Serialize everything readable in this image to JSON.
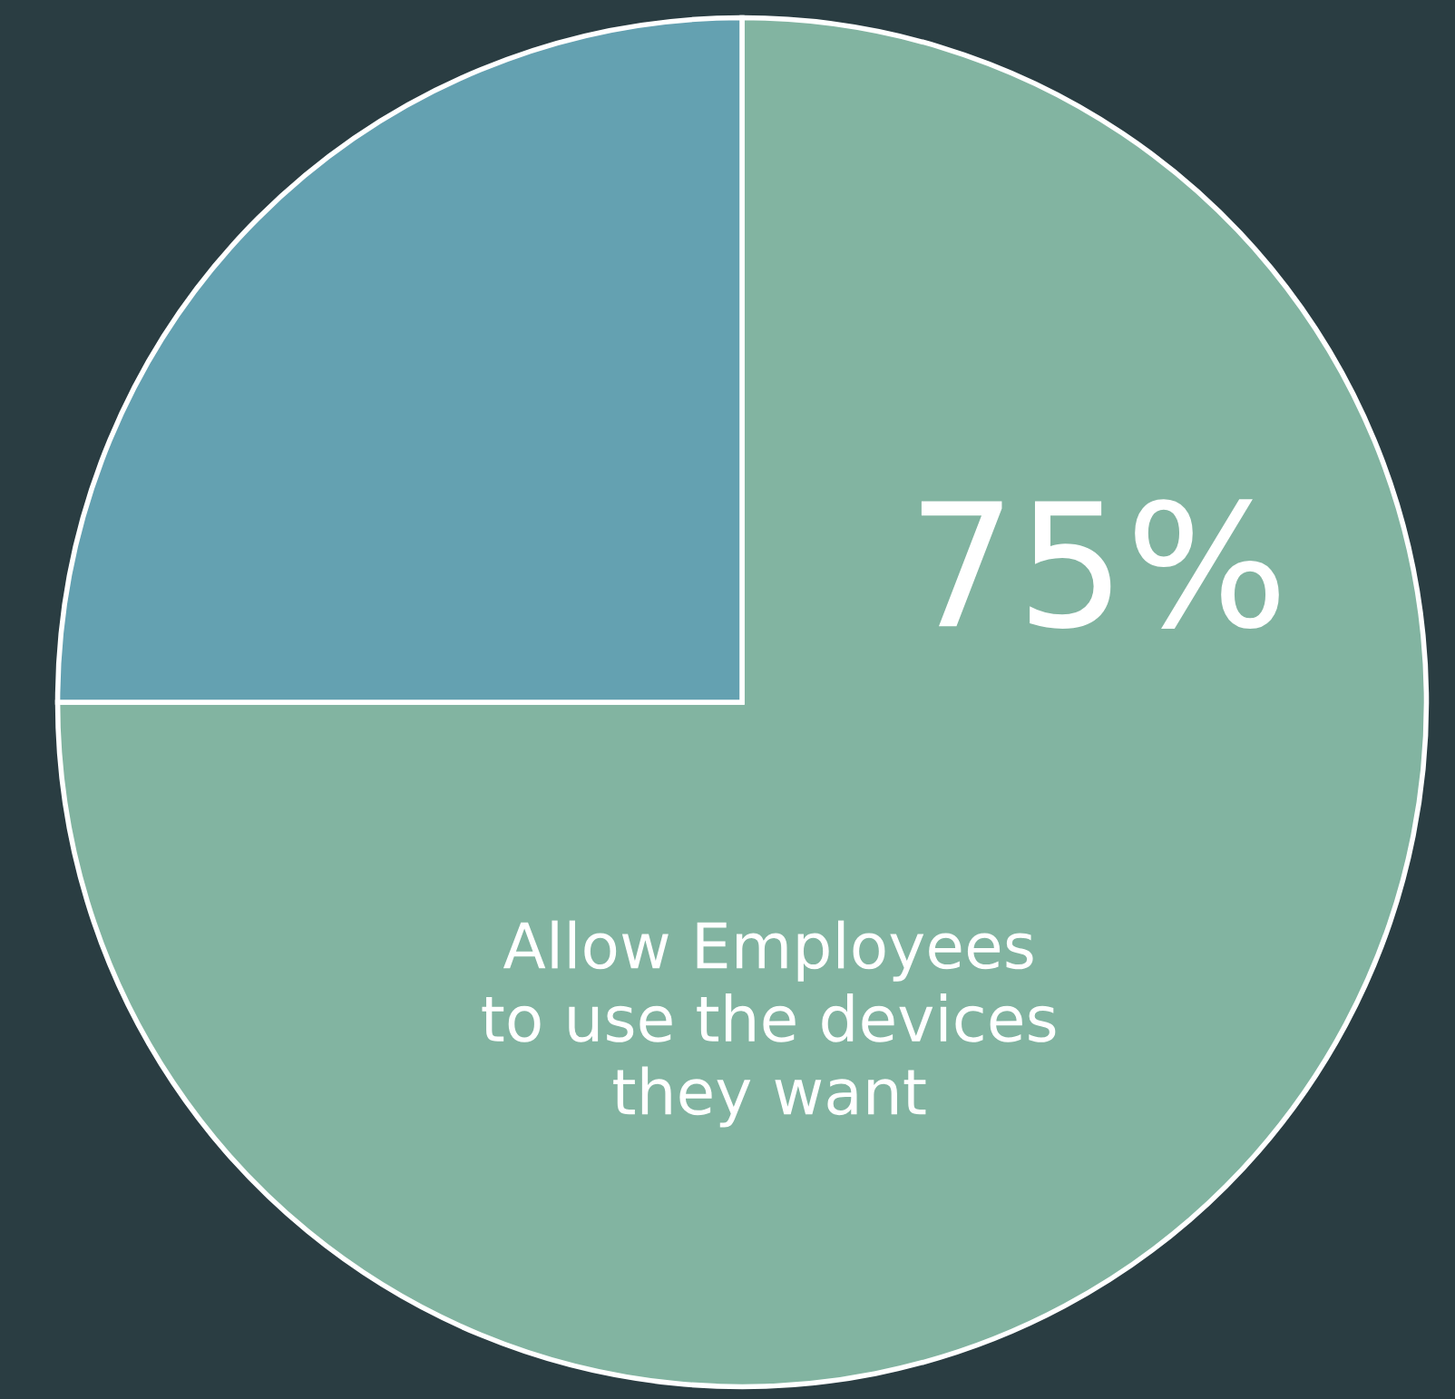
{
  "chart_data": {
    "type": "pie",
    "categories": [
      "Allow Employees\nto use the devices\nthey want",
      null
    ],
    "values": [
      75,
      25
    ],
    "colors": [
      "#82b4a1",
      "#64a1b1"
    ],
    "value_labels": [
      "75%",
      null
    ],
    "legend": false
  }
}
